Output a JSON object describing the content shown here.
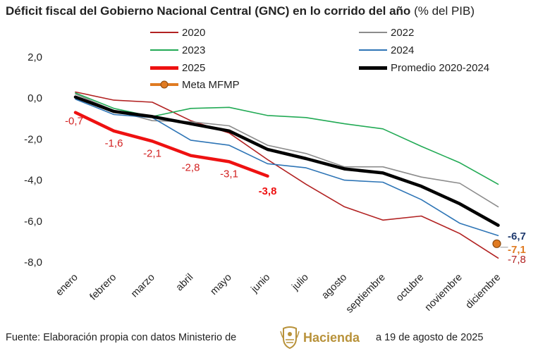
{
  "header": {
    "title_bold": "Déficit fiscal del Gobierno Nacional Central (GNC) en lo corrido del año",
    "title_unit": "(% del PIB)"
  },
  "footer": {
    "source": "Fuente: Elaboración propia con datos Ministerio de",
    "logo_text": "Hacienda",
    "date": "a 19 de agosto de 2025"
  },
  "colors": {
    "y2020": "#b22222",
    "y2022": "#8c8c8c",
    "y2023": "#22aa55",
    "y2024": "#2e75b6",
    "y2025": "#ee1111",
    "promedio": "#000000",
    "meta": "#e07b22",
    "logo": "#b8923a"
  },
  "chart_data": {
    "type": "line",
    "title": "Déficit fiscal del Gobierno Nacional Central (GNC) en lo corrido del año (% del PIB)",
    "xlabel": "",
    "ylabel": "",
    "ylim": [
      -8.0,
      2.0
    ],
    "yticks": [
      "2,0",
      "0,0",
      "-2,0",
      "-4,0",
      "-6,0",
      "-8,0"
    ],
    "ytick_values": [
      2,
      0,
      -2,
      -4,
      -6,
      -8
    ],
    "categories": [
      "enero",
      "febrero",
      "marzo",
      "abril",
      "mayo",
      "junio",
      "julio",
      "agosto",
      "septiembre",
      "octubre",
      "noviembre",
      "diciembre"
    ],
    "series": [
      {
        "name": "2020",
        "color": "#b22222",
        "width": 1.6,
        "values": [
          0.3,
          -0.1,
          -0.2,
          -1.1,
          -1.7,
          -3.0,
          -4.2,
          -5.3,
          -5.95,
          -5.75,
          -6.6,
          -7.8
        ]
      },
      {
        "name": "2022",
        "color": "#8c8c8c",
        "width": 1.6,
        "values": [
          0.2,
          -0.6,
          -1.1,
          -1.15,
          -1.35,
          -2.3,
          -2.7,
          -3.35,
          -3.35,
          -3.85,
          -4.15,
          -5.3
        ]
      },
      {
        "name": "2023",
        "color": "#22aa55",
        "width": 1.6,
        "values": [
          0.25,
          -0.5,
          -0.9,
          -0.5,
          -0.45,
          -0.85,
          -0.95,
          -1.25,
          -1.5,
          -2.35,
          -3.15,
          -4.2
        ]
      },
      {
        "name": "2024",
        "color": "#2e75b6",
        "width": 1.6,
        "values": [
          -0.05,
          -0.8,
          -0.95,
          -2.05,
          -2.3,
          -3.2,
          -3.4,
          -4.0,
          -4.1,
          -4.95,
          -6.1,
          -6.7
        ]
      },
      {
        "name": "2025",
        "color": "#ee1111",
        "width": 4.5,
        "values": [
          -0.7,
          -1.6,
          -2.1,
          -2.8,
          -3.1,
          -3.8,
          null,
          null,
          null,
          null,
          null,
          null
        ]
      },
      {
        "name": "Promedio 2020-2024",
        "color": "#000000",
        "width": 4.5,
        "values": [
          0.05,
          -0.65,
          -0.9,
          -1.25,
          -1.6,
          -2.5,
          -2.95,
          -3.45,
          -3.65,
          -4.3,
          -5.15,
          -6.2
        ]
      }
    ],
    "meta": {
      "name": "Meta MFMP",
      "color": "#e07b22",
      "category": "diciembre",
      "value": -7.1
    },
    "legend": [
      "2020",
      "2022",
      "2023",
      "2024",
      "2025",
      "Promedio 2020-2024",
      "Meta MFMP"
    ],
    "labels_2025": [
      {
        "category": "enero",
        "value": -0.7,
        "text": "-0,7"
      },
      {
        "category": "febrero",
        "value": -1.6,
        "text": "-1,6"
      },
      {
        "category": "marzo",
        "value": -2.1,
        "text": "-2,1"
      },
      {
        "category": "abril",
        "value": -2.8,
        "text": "-2,8"
      },
      {
        "category": "mayo",
        "value": -3.1,
        "text": "-3,1"
      },
      {
        "category": "junio",
        "value": -3.8,
        "text": "-3,8",
        "bold": true
      }
    ],
    "end_labels": [
      {
        "text": "-6,7",
        "color": "#1f3a6e",
        "bold": true,
        "value": -6.7
      },
      {
        "text": "-7,1",
        "color": "#e07b22",
        "bold": true,
        "value": -7.1
      },
      {
        "text": "-7,8",
        "color": "#b22222",
        "bold": false,
        "value": -7.8
      }
    ]
  }
}
